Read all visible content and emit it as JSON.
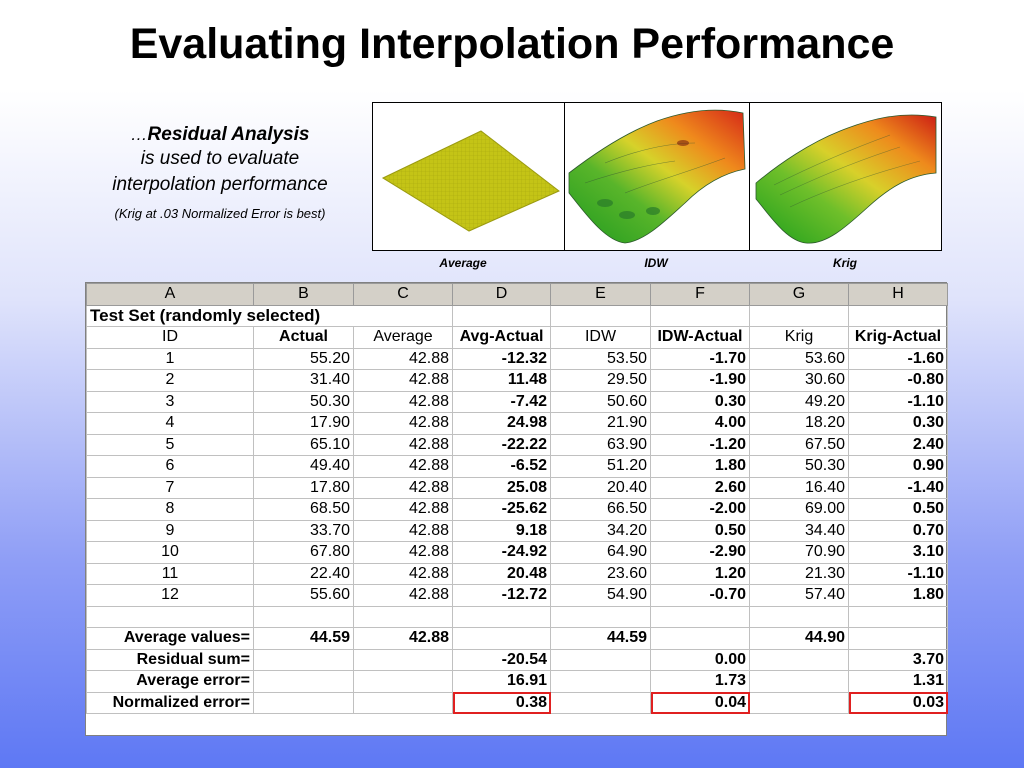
{
  "title": "Evaluating Interpolation Performance",
  "intro": {
    "dots": "…",
    "heading": "Residual Analysis",
    "line2": "is used to evaluate",
    "line3": "interpolation performance",
    "note": "(Krig at .03 Normalized Error is best)"
  },
  "plots": [
    {
      "caption": "Average"
    },
    {
      "caption": "IDW"
    },
    {
      "caption": "Krig"
    }
  ],
  "sheet": {
    "column_letters": [
      "A",
      "B",
      "C",
      "D",
      "E",
      "F",
      "G",
      "H"
    ],
    "section_title": "Test Set (randomly selected)",
    "headers": [
      "ID",
      "Actual",
      "Average",
      "Avg-Actual",
      "IDW",
      "IDW-Actual",
      "Krig",
      "Krig-Actual"
    ],
    "rows": [
      [
        "1",
        "55.20",
        "42.88",
        "-12.32",
        "53.50",
        "-1.70",
        "53.60",
        "-1.60"
      ],
      [
        "2",
        "31.40",
        "42.88",
        "11.48",
        "29.50",
        "-1.90",
        "30.60",
        "-0.80"
      ],
      [
        "3",
        "50.30",
        "42.88",
        "-7.42",
        "50.60",
        "0.30",
        "49.20",
        "-1.10"
      ],
      [
        "4",
        "17.90",
        "42.88",
        "24.98",
        "21.90",
        "4.00",
        "18.20",
        "0.30"
      ],
      [
        "5",
        "65.10",
        "42.88",
        "-22.22",
        "63.90",
        "-1.20",
        "67.50",
        "2.40"
      ],
      [
        "6",
        "49.40",
        "42.88",
        "-6.52",
        "51.20",
        "1.80",
        "50.30",
        "0.90"
      ],
      [
        "7",
        "17.80",
        "42.88",
        "25.08",
        "20.40",
        "2.60",
        "16.40",
        "-1.40"
      ],
      [
        "8",
        "68.50",
        "42.88",
        "-25.62",
        "66.50",
        "-2.00",
        "69.00",
        "0.50"
      ],
      [
        "9",
        "33.70",
        "42.88",
        "9.18",
        "34.20",
        "0.50",
        "34.40",
        "0.70"
      ],
      [
        "10",
        "67.80",
        "42.88",
        "-24.92",
        "64.90",
        "-2.90",
        "70.90",
        "3.10"
      ],
      [
        "11",
        "22.40",
        "42.88",
        "20.48",
        "23.60",
        "1.20",
        "21.30",
        "-1.10"
      ],
      [
        "12",
        "55.60",
        "42.88",
        "-12.72",
        "54.90",
        "-0.70",
        "57.40",
        "1.80"
      ]
    ],
    "summary": [
      {
        "label": "Average values=",
        "values": [
          "44.59",
          "42.88",
          "",
          "44.59",
          "",
          "44.90",
          ""
        ]
      },
      {
        "label": "Residual sum=",
        "values": [
          "",
          "",
          "-20.54",
          "",
          "0.00",
          "",
          "3.70"
        ]
      },
      {
        "label": "Average error=",
        "values": [
          "",
          "",
          "16.91",
          "",
          "1.73",
          "",
          "1.31"
        ]
      },
      {
        "label": "Normalized error=",
        "values": [
          "",
          "",
          "0.38",
          "",
          "0.04",
          "",
          "0.03"
        ]
      }
    ]
  },
  "colors": {
    "highlight": "#e02020",
    "flat_surface": "#c4c416",
    "surface_low": "#22a822",
    "surface_high": "#d82a18"
  }
}
